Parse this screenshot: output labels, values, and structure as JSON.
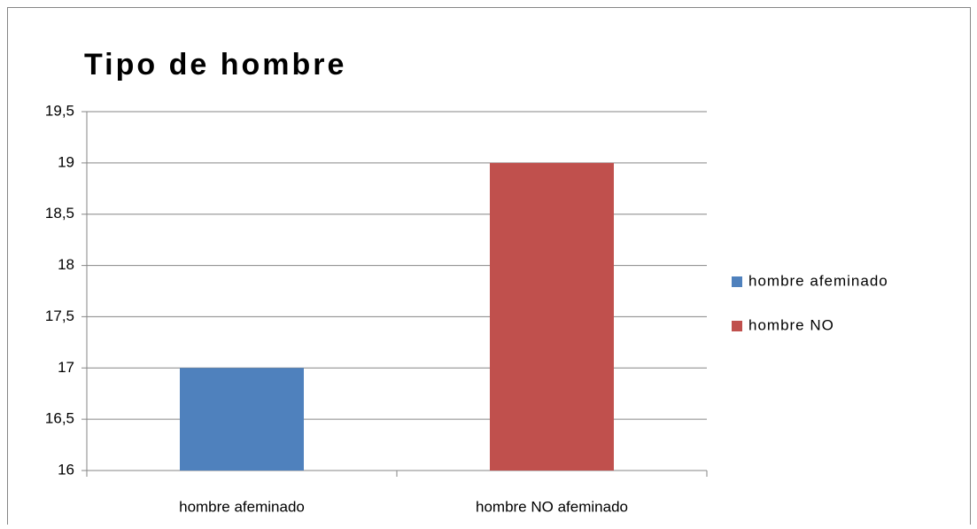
{
  "chart_data": {
    "type": "bar",
    "title": "Tipo de hombre",
    "categories": [
      "hombre afeminado",
      "hombre NO afeminado"
    ],
    "series": [
      {
        "name": "hombre afeminado",
        "color": "#4f81bd",
        "values": [
          17,
          null
        ]
      },
      {
        "name": "hombre NO",
        "color": "#c0504d",
        "values": [
          null,
          19
        ]
      }
    ],
    "ylim": [
      16,
      19.5
    ],
    "yticks": [
      16,
      {
        "value": 16.5,
        "label": "16,5"
      },
      17,
      {
        "value": 17.5,
        "label": "17,5"
      },
      18,
      {
        "value": 18.5,
        "label": "18,5"
      },
      19,
      {
        "value": 19.5,
        "label": "19,5"
      }
    ],
    "grid": true,
    "legend": "right"
  }
}
